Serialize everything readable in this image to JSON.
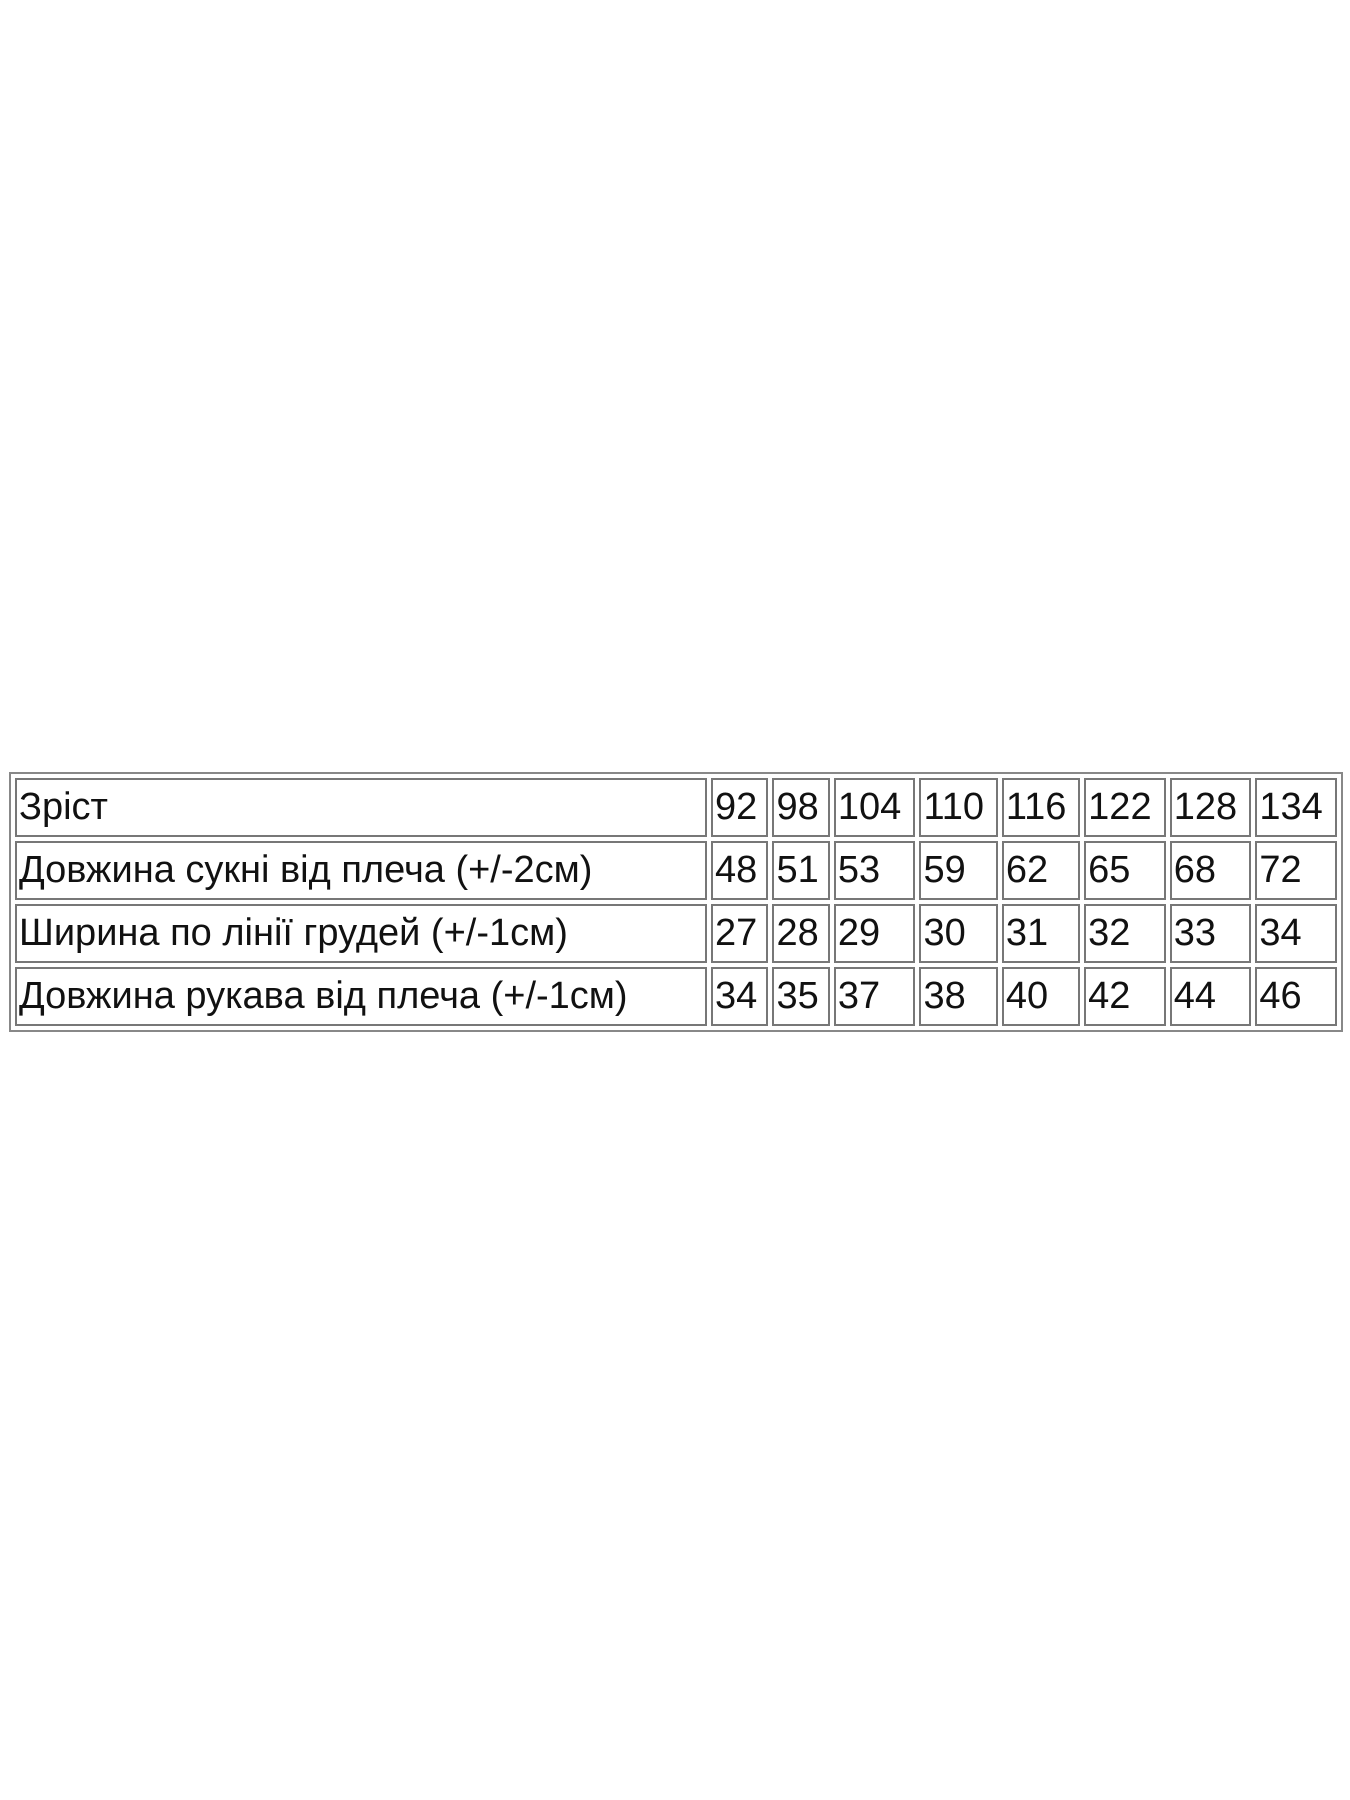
{
  "size_table": {
    "rows": [
      {
        "label": "Зріст",
        "values": [
          "92",
          "98",
          "104",
          "110",
          "116",
          "122",
          "128",
          "134"
        ]
      },
      {
        "label": "Довжина сукні від плеча (+/-2см)",
        "values": [
          "48",
          "51",
          "53",
          "59",
          "62",
          "65",
          "68",
          "72"
        ]
      },
      {
        "label": "Ширина по лінії грудей (+/-1см)",
        "values": [
          "27",
          "28",
          "29",
          "30",
          "31",
          "32",
          "33",
          "34"
        ]
      },
      {
        "label": "Довжина рукава від плеча (+/-1см)",
        "values": [
          "34",
          "35",
          "37",
          "38",
          "40",
          "42",
          "44",
          "46"
        ]
      }
    ]
  }
}
